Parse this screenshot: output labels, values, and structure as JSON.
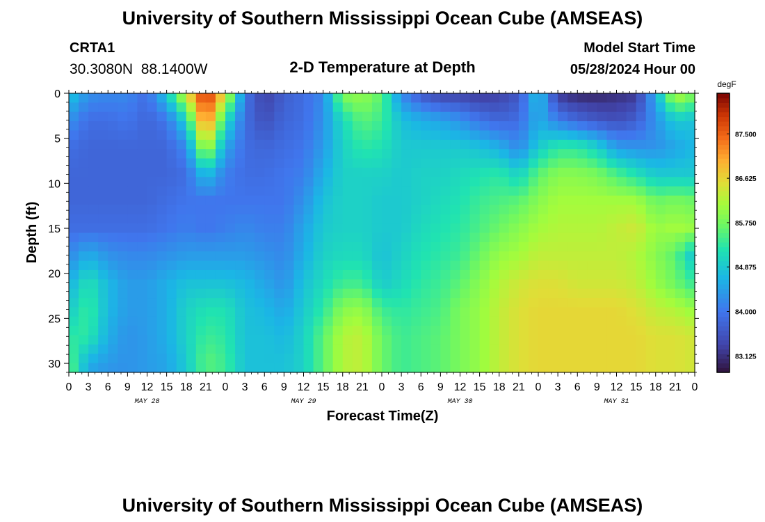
{
  "header": {
    "title": "University of Southern Mississippi Ocean Cube (AMSEAS)",
    "station": "CRTA1",
    "coords": "30.3080N  88.1400W",
    "chart_title": "2-D Temperature at Depth",
    "model_start_label": "Model Start Time",
    "model_start_value": "05/28/2024 Hour 00"
  },
  "footer": {
    "title": "University of Southern Mississippi Ocean Cube (AMSEAS)"
  },
  "chart_data": {
    "type": "heatmap",
    "title": "2-D Temperature at Depth",
    "xlabel": "Forecast Time(Z)",
    "ylabel": "Depth (ft)",
    "x_hours": [
      0,
      3,
      6,
      9,
      12,
      15,
      18,
      21,
      24,
      27,
      30,
      33,
      36,
      39,
      42,
      45,
      48,
      51,
      54,
      57,
      60,
      63,
      66,
      69,
      72,
      75,
      78,
      81,
      84,
      87,
      90,
      93,
      96
    ],
    "x_tick_labels": [
      "0",
      "3",
      "6",
      "9",
      "12",
      "15",
      "18",
      "21",
      "0",
      "3",
      "6",
      "9",
      "12",
      "15",
      "18",
      "21",
      "0",
      "3",
      "6",
      "9",
      "12",
      "15",
      "18",
      "21",
      "0",
      "3",
      "6",
      "9",
      "12",
      "15",
      "18",
      "21",
      "0"
    ],
    "date_labels": [
      "MAY 28",
      "MAY 29",
      "MAY 30",
      "MAY 31"
    ],
    "date_label_hours": [
      12,
      36,
      60,
      84
    ],
    "xlim": [
      0,
      96
    ],
    "y_ticks": [
      0,
      5,
      10,
      15,
      20,
      25,
      30
    ],
    "y_tick_labels": [
      "0",
      "5",
      "10",
      "15",
      "20",
      "25",
      "30"
    ],
    "ylim": [
      0,
      31
    ],
    "y_inverted": true,
    "depths_ft": [
      0,
      3,
      6,
      9,
      12,
      15,
      18,
      21,
      24,
      27,
      30,
      31
    ],
    "temperatures_degF": [
      [
        84.9,
        84.3,
        83.9,
        83.8,
        83.8,
        83.9,
        84.2,
        84.6,
        84.9,
        85.3,
        85.6,
        85.7
      ],
      [
        84.3,
        83.9,
        83.8,
        83.8,
        83.8,
        83.9,
        84.6,
        85.2,
        85.4,
        85.3,
        84.6,
        84.5
      ],
      [
        84.2,
        83.9,
        83.8,
        83.8,
        83.8,
        83.9,
        84.3,
        84.7,
        84.7,
        84.6,
        84.4,
        84.3
      ],
      [
        84.2,
        84.0,
        83.8,
        83.8,
        83.8,
        83.9,
        84.2,
        84.4,
        84.4,
        84.3,
        84.3,
        84.3
      ],
      [
        83.9,
        83.8,
        83.8,
        83.8,
        83.8,
        83.9,
        84.2,
        84.4,
        84.4,
        84.4,
        84.4,
        84.4
      ],
      [
        84.9,
        84.0,
        83.8,
        83.8,
        83.9,
        84.0,
        84.3,
        84.6,
        84.6,
        84.6,
        84.5,
        84.5
      ],
      [
        86.5,
        85.0,
        84.2,
        83.9,
        84.0,
        84.1,
        84.4,
        84.8,
        85.0,
        85.0,
        84.9,
        84.9
      ],
      [
        88.0,
        87.5,
        86.3,
        84.8,
        84.0,
        84.0,
        84.4,
        84.8,
        85.2,
        85.4,
        85.6,
        85.5
      ],
      [
        86.6,
        85.2,
        84.5,
        84.1,
        84.0,
        84.1,
        84.4,
        84.8,
        85.2,
        85.3,
        85.4,
        85.4
      ],
      [
        84.0,
        83.9,
        83.9,
        83.9,
        84.0,
        84.2,
        84.4,
        84.7,
        84.8,
        84.8,
        84.8,
        84.8
      ],
      [
        83.3,
        83.5,
        83.8,
        83.9,
        84.0,
        84.1,
        84.3,
        84.5,
        84.7,
        84.8,
        84.8,
        84.8
      ],
      [
        83.7,
        83.8,
        83.9,
        84.0,
        84.0,
        84.1,
        84.2,
        84.3,
        84.5,
        84.7,
        84.8,
        84.8
      ],
      [
        83.9,
        83.9,
        84.0,
        84.1,
        84.3,
        84.5,
        84.6,
        84.8,
        84.9,
        85.0,
        85.0,
        85.0
      ],
      [
        84.2,
        84.3,
        84.4,
        84.6,
        84.8,
        84.9,
        85.0,
        85.1,
        85.3,
        85.6,
        85.6,
        85.6
      ],
      [
        85.9,
        85.1,
        85.0,
        85.0,
        85.0,
        85.0,
        85.1,
        85.4,
        85.9,
        86.2,
        86.2,
        86.2
      ],
      [
        86.0,
        85.6,
        85.3,
        85.0,
        85.0,
        85.0,
        85.1,
        85.4,
        86.0,
        86.3,
        86.3,
        86.3
      ],
      [
        85.6,
        85.4,
        85.2,
        85.0,
        84.9,
        84.9,
        84.8,
        84.9,
        85.4,
        85.7,
        85.7,
        85.7
      ],
      [
        84.2,
        84.8,
        84.9,
        84.9,
        84.9,
        84.9,
        85.0,
        85.1,
        85.3,
        85.4,
        85.4,
        85.4
      ],
      [
        83.6,
        84.6,
        84.9,
        85.0,
        85.0,
        85.1,
        85.2,
        85.3,
        85.4,
        85.5,
        85.5,
        85.5
      ],
      [
        83.3,
        84.5,
        84.9,
        85.0,
        85.1,
        85.2,
        85.3,
        85.4,
        85.5,
        85.6,
        85.6,
        85.6
      ],
      [
        83.3,
        84.3,
        84.9,
        85.1,
        85.2,
        85.3,
        85.4,
        85.6,
        85.8,
        85.8,
        85.8,
        85.8
      ],
      [
        83.2,
        84.0,
        84.8,
        85.2,
        85.4,
        85.5,
        85.7,
        85.9,
        86.0,
        86.0,
        86.0,
        86.0
      ],
      [
        83.3,
        83.8,
        84.6,
        85.3,
        85.5,
        85.7,
        86.0,
        86.2,
        86.3,
        86.3,
        86.3,
        86.3
      ],
      [
        83.6,
        83.9,
        84.2,
        85.0,
        85.6,
        85.9,
        86.1,
        86.4,
        86.5,
        86.5,
        86.5,
        86.5
      ],
      [
        84.9,
        84.6,
        84.9,
        85.6,
        85.9,
        86.1,
        86.3,
        86.5,
        86.6,
        86.6,
        86.6,
        86.6
      ],
      [
        83.2,
        84.1,
        85.3,
        85.9,
        86.1,
        86.2,
        86.3,
        86.5,
        86.6,
        86.6,
        86.6,
        86.6
      ],
      [
        83.0,
        83.8,
        85.3,
        85.9,
        86.1,
        86.2,
        86.3,
        86.4,
        86.6,
        86.6,
        86.6,
        86.6
      ],
      [
        83.0,
        83.6,
        85.0,
        85.8,
        86.1,
        86.2,
        86.3,
        86.4,
        86.6,
        86.6,
        86.6,
        86.6
      ],
      [
        83.1,
        83.5,
        84.4,
        85.5,
        86.1,
        86.3,
        86.3,
        86.4,
        86.6,
        86.6,
        86.6,
        86.6
      ],
      [
        83.2,
        83.7,
        84.3,
        85.2,
        86.1,
        86.4,
        86.2,
        86.3,
        86.5,
        86.6,
        86.6,
        86.6
      ],
      [
        84.6,
        84.3,
        84.3,
        84.9,
        85.7,
        86.0,
        85.9,
        86.0,
        86.3,
        86.5,
        86.5,
        86.5
      ],
      [
        86.3,
        84.9,
        84.5,
        84.9,
        85.8,
        86.1,
        85.6,
        85.7,
        86.2,
        86.5,
        86.5,
        86.5
      ],
      [
        85.8,
        84.8,
        84.7,
        84.9,
        85.7,
        86.0,
        84.8,
        85.3,
        86.0,
        86.4,
        86.4,
        86.4
      ]
    ],
    "colorbar": {
      "unit": "degF",
      "tick_values": [
        83.125,
        84.0,
        84.875,
        85.75,
        86.625,
        87.5
      ],
      "tick_labels": [
        "83.125",
        "84.000",
        "84.875",
        "85.750",
        "86.625",
        "87.500"
      ],
      "range": [
        82.8,
        88.3
      ]
    },
    "grid": false
  }
}
